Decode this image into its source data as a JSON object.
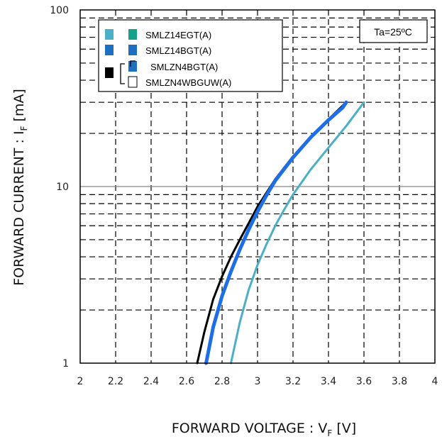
{
  "chart_data": {
    "type": "line",
    "xlabel": "FORWARD VOLTAGE : V",
    "xlabel_sub": "F",
    "xlabel_unit": "[V]",
    "ylabel": "FORWARD CURRENT : I",
    "ylabel_sub": "F",
    "ylabel_unit": "[mA]",
    "xlim": [
      2,
      4
    ],
    "ylim": [
      1,
      100
    ],
    "yscale": "log",
    "xticks": [
      "2",
      "2.2",
      "2.4",
      "2.6",
      "2.8",
      "3",
      "3.2",
      "3.4",
      "3.6",
      "3.8",
      "4"
    ],
    "yticks": [
      "1",
      "10",
      "100"
    ],
    "grid": true,
    "annotation": "Ta=25ºC",
    "legend_position": "top-left",
    "legend": [
      {
        "label": "SMLZ14EGT(A)",
        "swatches": [
          "#4bafc8",
          "#17a08a"
        ]
      },
      {
        "label": "SMLZ14BGT(A)",
        "swatches": [
          "#1f6fc0",
          "#1f6fc0"
        ]
      },
      {
        "label": "SMLZN4BGT(A)",
        "swatches": [
          "#000000",
          "#1f6fc0"
        ]
      },
      {
        "label": "SMLZN4WBGUW(A)",
        "swatches": [
          "#000000",
          "#ffffff"
        ]
      }
    ],
    "series": [
      {
        "color": "#000000",
        "stroke_width": 3,
        "points": [
          [
            2.66,
            1
          ],
          [
            2.7,
            1.5
          ],
          [
            2.75,
            2.3
          ],
          [
            2.8,
            3.1
          ],
          [
            2.85,
            4
          ],
          [
            2.9,
            5
          ],
          [
            2.95,
            6.2
          ],
          [
            3.0,
            7.7
          ],
          [
            3.05,
            9.2
          ],
          [
            3.1,
            11
          ],
          [
            3.2,
            14.8
          ],
          [
            3.3,
            19.2
          ],
          [
            3.4,
            24
          ],
          [
            3.5,
            30
          ]
        ]
      },
      {
        "color": "#1e6ee8",
        "stroke_width": 5,
        "points": [
          [
            2.71,
            1
          ],
          [
            2.75,
            1.6
          ],
          [
            2.8,
            2.4
          ],
          [
            2.85,
            3.3
          ],
          [
            2.9,
            4.4
          ],
          [
            2.95,
            5.7
          ],
          [
            3.0,
            7.2
          ],
          [
            3.05,
            8.9
          ],
          [
            3.1,
            10.8
          ],
          [
            3.2,
            14.6
          ],
          [
            3.3,
            19
          ],
          [
            3.4,
            23.8
          ],
          [
            3.48,
            28
          ],
          [
            3.5,
            30
          ]
        ]
      },
      {
        "color": "#4bafc8",
        "stroke_width": 3,
        "points": [
          [
            2.85,
            1
          ],
          [
            2.9,
            1.7
          ],
          [
            2.95,
            2.6
          ],
          [
            3.0,
            3.6
          ],
          [
            3.05,
            4.7
          ],
          [
            3.1,
            6
          ],
          [
            3.15,
            7.4
          ],
          [
            3.2,
            9
          ],
          [
            3.3,
            12.5
          ],
          [
            3.4,
            16.6
          ],
          [
            3.5,
            22
          ],
          [
            3.6,
            30
          ]
        ]
      }
    ]
  }
}
